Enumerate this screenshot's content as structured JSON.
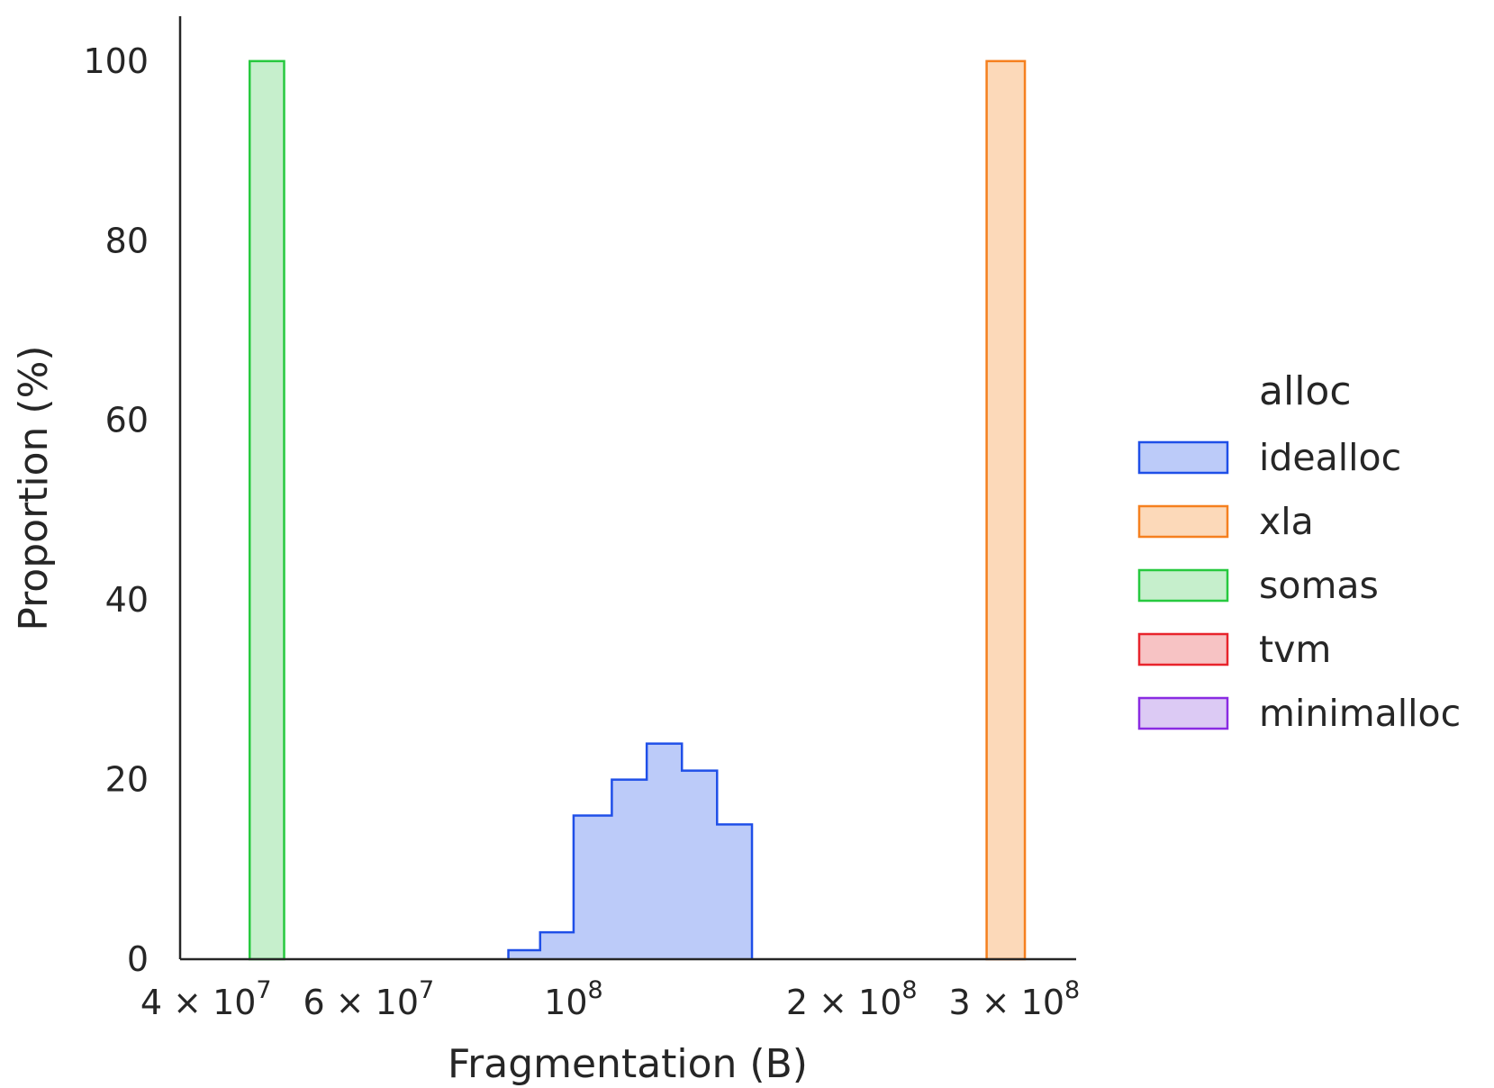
{
  "chart_data": {
    "type": "histogram",
    "xlabel": "Fragmentation (B)",
    "ylabel": "Proportion (%)",
    "xscale": "log",
    "xlim": [
      37500000,
      350000000
    ],
    "ylim": [
      0,
      105
    ],
    "x_ticks": [
      {
        "value": 40000000,
        "label": "4 × 10^7",
        "mant": "4 × 10",
        "exp": "7"
      },
      {
        "value": 60000000,
        "label": "6 × 10^7",
        "mant": "6 × 10",
        "exp": "7"
      },
      {
        "value": 100000000,
        "label": "10^8",
        "mant": "10",
        "exp": "8"
      },
      {
        "value": 200000000,
        "label": "2 × 10^8",
        "mant": "2 × 10",
        "exp": "8"
      },
      {
        "value": 300000000,
        "label": "3 × 10^8",
        "mant": "3 × 10",
        "exp": "8"
      }
    ],
    "y_ticks": [
      0,
      20,
      40,
      60,
      80,
      100
    ],
    "grid": false,
    "legend": {
      "title": "alloc",
      "placement": "right",
      "entries": [
        {
          "name": "idealloc",
          "edge": "#1f4fe8",
          "fill": "#bccbf9"
        },
        {
          "name": "xla",
          "edge": "#f5801f",
          "fill": "#fcd9b9"
        },
        {
          "name": "somas",
          "edge": "#27c93f",
          "fill": "#c6efcc"
        },
        {
          "name": "tvm",
          "edge": "#e8242c",
          "fill": "#f7c3c4"
        },
        {
          "name": "minimalloc",
          "edge": "#8a2be2",
          "fill": "#dccaf4"
        }
      ]
    },
    "series": [
      {
        "name": "idealloc",
        "style": "step",
        "bins": [
          {
            "x0": 85000000,
            "x1": 92000000,
            "y": 1
          },
          {
            "x0": 92000000,
            "x1": 100000000,
            "y": 3
          },
          {
            "x0": 100000000,
            "x1": 110000000,
            "y": 16
          },
          {
            "x0": 110000000,
            "x1": 120000000,
            "y": 20
          },
          {
            "x0": 120000000,
            "x1": 131000000,
            "y": 24
          },
          {
            "x0": 131000000,
            "x1": 143000000,
            "y": 21
          },
          {
            "x0": 143000000,
            "x1": 156000000,
            "y": 15
          }
        ]
      },
      {
        "name": "xla",
        "style": "bar",
        "bins": [
          {
            "x0": 280000000,
            "x1": 308000000,
            "y": 100
          }
        ]
      },
      {
        "name": "somas",
        "style": "bar",
        "bins": [
          {
            "x0": 44600000,
            "x1": 48600000,
            "y": 100
          }
        ]
      },
      {
        "name": "tvm",
        "style": "bar",
        "bins": []
      },
      {
        "name": "minimalloc",
        "style": "bar",
        "bins": []
      }
    ]
  }
}
